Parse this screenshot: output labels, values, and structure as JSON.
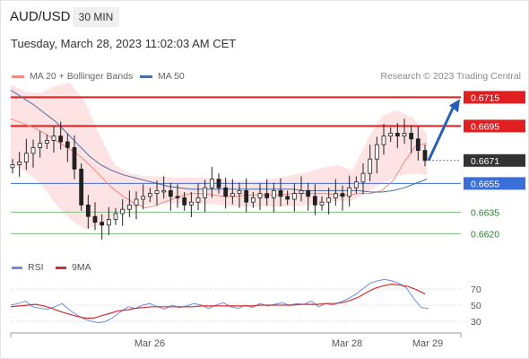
{
  "header": {
    "pair": "AUD/USD",
    "timeframe": "30 MIN",
    "datetime": "Tuesday, March 28, 2023 11:02:03 AM CET"
  },
  "legend": {
    "ma20_label": "MA 20 + Bollinger Bands",
    "ma50_label": "MA 50",
    "credit": "Research © 2023 Trading Central"
  },
  "rsi_legend": {
    "rsi_label": "RSI",
    "ma_label": "9MA"
  },
  "colors": {
    "ma20": "#f28b82",
    "ma50": "#4a6fa5",
    "bollinger_fill": "#fde0e0",
    "resistance": "#e02020",
    "support": "#3b6fd8",
    "target": "#2e7d32",
    "current": "#333333",
    "arrow": "#2a5fb8",
    "candle": "#222222",
    "rsi": "#6e8fe0",
    "rsi_ma": "#d32f2f"
  },
  "chart_data": [
    {
      "type": "line",
      "title": "",
      "price_range": [
        0.6614,
        0.6729
      ],
      "x_ticks": [
        "Mar 26",
        "Mar 28",
        "Mar 29"
      ],
      "levels": [
        {
          "value": "0.6715",
          "kind": "resistance"
        },
        {
          "value": "0.6695",
          "kind": "resistance"
        },
        {
          "value": "0.6671",
          "kind": "current"
        },
        {
          "value": "0.6655",
          "kind": "support"
        },
        {
          "value": "0.6635",
          "kind": "target"
        },
        {
          "value": "0.6620",
          "kind": "target"
        }
      ],
      "close_series": [
        0.6668,
        0.667,
        0.6676,
        0.668,
        0.6683,
        0.6685,
        0.6688,
        0.6684,
        0.668,
        0.6665,
        0.664,
        0.6632,
        0.6628,
        0.6626,
        0.663,
        0.6634,
        0.6637,
        0.664,
        0.6644,
        0.6646,
        0.6648,
        0.665,
        0.665,
        0.6646,
        0.6645,
        0.664,
        0.6642,
        0.6645,
        0.6652,
        0.6658,
        0.6652,
        0.6646,
        0.6648,
        0.665,
        0.6642,
        0.6645,
        0.6648,
        0.6645,
        0.665,
        0.6646,
        0.6644,
        0.6648,
        0.665,
        0.6646,
        0.664,
        0.6642,
        0.6645,
        0.6648,
        0.6646,
        0.6652,
        0.6656,
        0.6662,
        0.6672,
        0.6682,
        0.6688,
        0.669,
        0.6688,
        0.669,
        0.6686,
        0.6678,
        0.6671
      ],
      "ma20": [
        0.67,
        0.6697,
        0.6694,
        0.669,
        0.6685,
        0.668,
        0.6675,
        0.6668,
        0.666,
        0.6652,
        0.6646,
        0.6641,
        0.6638,
        0.664,
        0.6643,
        0.6646,
        0.6648,
        0.6648,
        0.6647,
        0.6646,
        0.6646,
        0.6647,
        0.6647,
        0.6647,
        0.6647,
        0.6648,
        0.6648,
        0.6648,
        0.6648,
        0.6647,
        0.6647,
        0.6648,
        0.6648,
        0.665,
        0.6657,
        0.667,
        0.6681,
        0.6683
      ],
      "ma50": [
        0.672,
        0.6715,
        0.671,
        0.6704,
        0.6698,
        0.669,
        0.6682,
        0.6674,
        0.6668,
        0.6664,
        0.6661,
        0.6659,
        0.6657,
        0.6655,
        0.6653,
        0.6652,
        0.6651,
        0.6651,
        0.6651,
        0.6651,
        0.6651,
        0.6651,
        0.6651,
        0.6651,
        0.6651,
        0.6651,
        0.665,
        0.665,
        0.665,
        0.665,
        0.665,
        0.665,
        0.6649,
        0.6649,
        0.665,
        0.6652,
        0.6655,
        0.6658
      ],
      "bollinger_upper": [
        0.6724,
        0.6719,
        0.6718,
        0.6723,
        0.6725,
        0.6712,
        0.6688,
        0.6668,
        0.6662,
        0.666,
        0.666,
        0.6659,
        0.6659,
        0.6659,
        0.6658,
        0.6657,
        0.6657,
        0.6657,
        0.6659,
        0.6661,
        0.6663,
        0.6666,
        0.6668,
        0.6664,
        0.6685,
        0.6702,
        0.6706,
        0.6701,
        0.669
      ],
      "bollinger_lower": [
        0.667,
        0.6663,
        0.6655,
        0.6641,
        0.663,
        0.6623,
        0.6626,
        0.6633,
        0.6637,
        0.664,
        0.6641,
        0.6641,
        0.6641,
        0.6641,
        0.664,
        0.6639,
        0.6639,
        0.6639,
        0.6639,
        0.6639,
        0.664,
        0.6641,
        0.6643,
        0.6643,
        0.6649,
        0.6655,
        0.666,
        0.6662,
        0.6661
      ],
      "projection": {
        "from": 0.6671,
        "to": 0.6715
      }
    },
    {
      "type": "line",
      "title": "",
      "y_ticks": [
        "70",
        "50",
        "30"
      ],
      "rsi": [
        50,
        52,
        55,
        48,
        46,
        45,
        48,
        52,
        44,
        38,
        33,
        30,
        28,
        30,
        35,
        42,
        48,
        46,
        50,
        52,
        48,
        45,
        50,
        47,
        49,
        52,
        50,
        46,
        50,
        53,
        48,
        46,
        50,
        47,
        52,
        49,
        51,
        53,
        50,
        52,
        51,
        55,
        48,
        52,
        50,
        54,
        58,
        63,
        70,
        77,
        80,
        82,
        80,
        77,
        71,
        58,
        47,
        46
      ],
      "rsi_ma": [
        48,
        49,
        50,
        51,
        49,
        46,
        42,
        39,
        36,
        34,
        34,
        37,
        40,
        43,
        44,
        46,
        47,
        48,
        48,
        48,
        48,
        48,
        48,
        49,
        49,
        49,
        49,
        49,
        49,
        49,
        50,
        50,
        50,
        50,
        50,
        51,
        51,
        51,
        52,
        52,
        53,
        56,
        60,
        66,
        71,
        74,
        76,
        75,
        73,
        69,
        64
      ]
    }
  ]
}
